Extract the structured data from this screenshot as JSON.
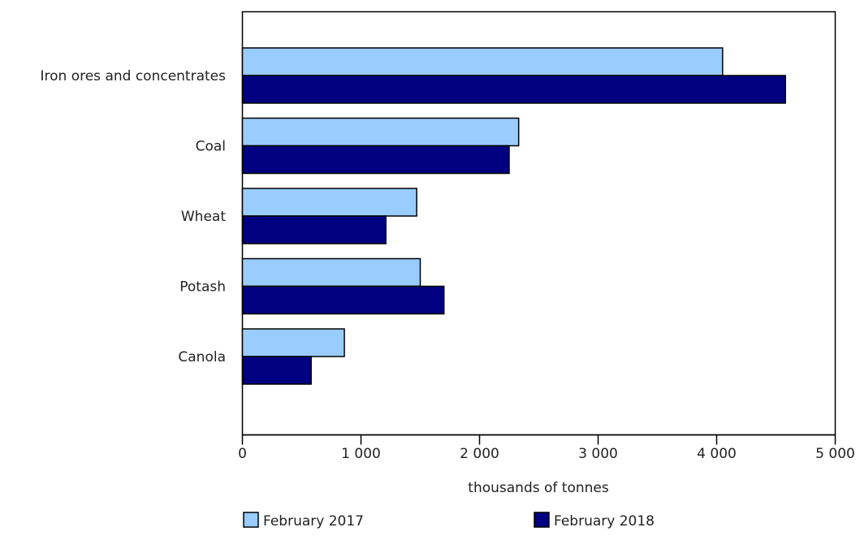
{
  "chart_data": {
    "type": "bar",
    "orientation": "horizontal",
    "categories": [
      "Iron ores and concentrates",
      "Coal",
      "Wheat",
      "Potash",
      "Canola"
    ],
    "series": [
      {
        "name": "February 2017",
        "color": "#99ccff",
        "values": [
          4050,
          2330,
          1470,
          1500,
          860
        ]
      },
      {
        "name": "February 2018",
        "color": "#000080",
        "values": [
          4580,
          2250,
          1210,
          1700,
          580
        ]
      }
    ],
    "x_ticks": [
      0,
      1000,
      2000,
      3000,
      4000,
      5000
    ],
    "x_tick_labels": [
      "0",
      "1 000",
      "2 000",
      "3 000",
      "4 000",
      "5 000"
    ],
    "xlim": [
      0,
      5000
    ],
    "xlabel": "thousands of tonnes",
    "ylabel": "",
    "title": "",
    "grid": false,
    "legend_position": "bottom"
  }
}
